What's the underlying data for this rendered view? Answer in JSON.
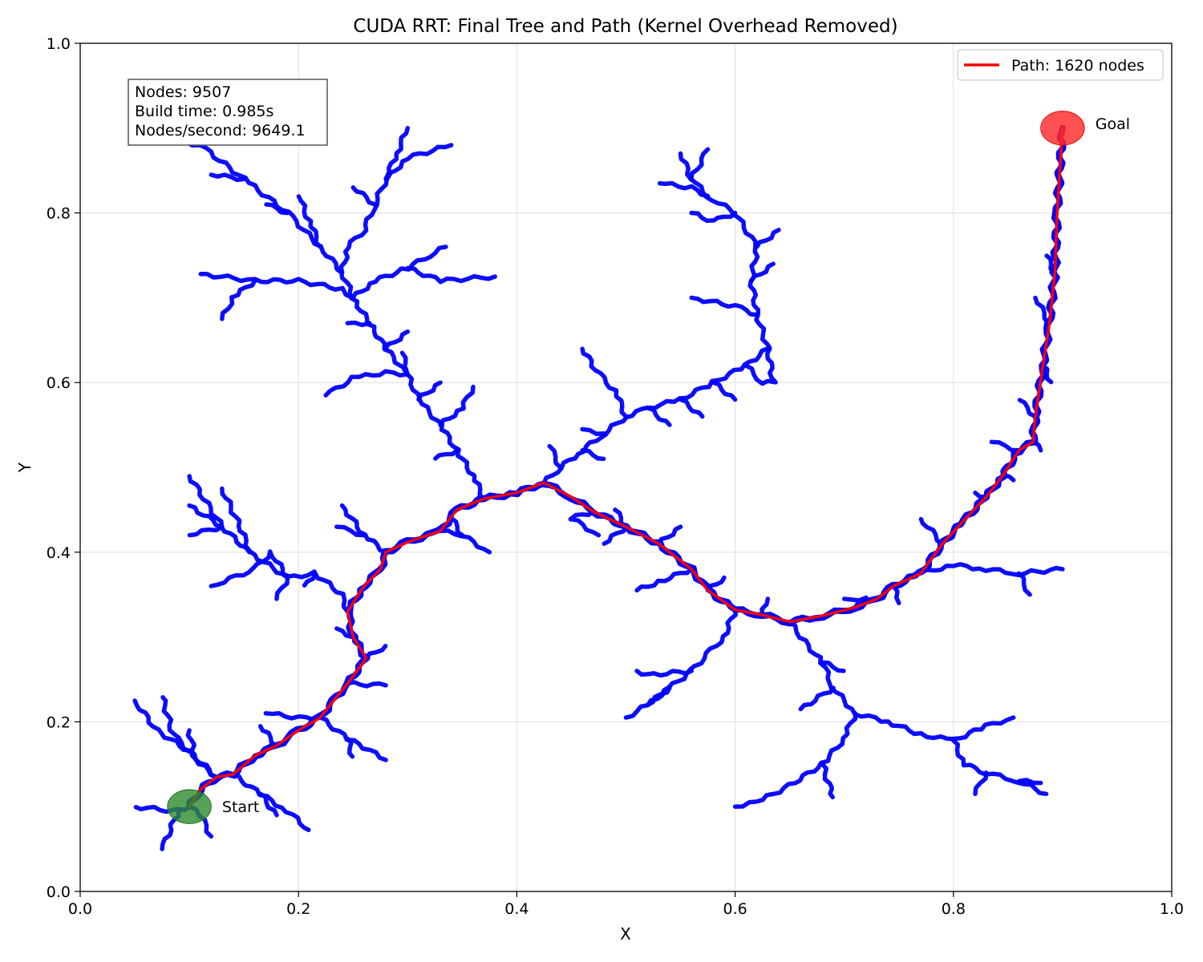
{
  "chart_data": {
    "type": "scatter",
    "title": "CUDA RRT: Final Tree and Path (Kernel Overhead Removed)",
    "xlabel": "X",
    "ylabel": "Y",
    "xlim": [
      0.0,
      1.0
    ],
    "ylim": [
      0.0,
      1.0
    ],
    "x_ticks": [
      "0.0",
      "0.2",
      "0.4",
      "0.6",
      "0.8",
      "1.0"
    ],
    "y_ticks": [
      "0.0",
      "0.2",
      "0.4",
      "0.6",
      "0.8",
      "1.0"
    ],
    "grid": true,
    "legend": {
      "placement": "top-right",
      "entries": [
        {
          "label": "Path: 1620 nodes",
          "color": "#ff0000"
        }
      ]
    },
    "stats": [
      "Nodes: 9507",
      "Build time: 0.985s",
      "Nodes/second: 9649.1"
    ],
    "start": {
      "label": "Start",
      "x": 0.1,
      "y": 0.1,
      "color": "#2e8b2e"
    },
    "goal": {
      "label": "Goal",
      "x": 0.9,
      "y": 0.9,
      "color": "#ff2b2b"
    },
    "tree_color": "#0000ff",
    "path_color": "#ff0000",
    "path": [
      [
        0.1,
        0.1
      ],
      [
        0.11,
        0.12
      ],
      [
        0.125,
        0.135
      ],
      [
        0.14,
        0.138
      ],
      [
        0.16,
        0.16
      ],
      [
        0.18,
        0.172
      ],
      [
        0.2,
        0.19
      ],
      [
        0.22,
        0.205
      ],
      [
        0.232,
        0.225
      ],
      [
        0.245,
        0.245
      ],
      [
        0.262,
        0.275
      ],
      [
        0.25,
        0.3
      ],
      [
        0.245,
        0.33
      ],
      [
        0.26,
        0.36
      ],
      [
        0.275,
        0.38
      ],
      [
        0.28,
        0.4
      ],
      [
        0.3,
        0.412
      ],
      [
        0.33,
        0.425
      ],
      [
        0.345,
        0.45
      ],
      [
        0.37,
        0.463
      ],
      [
        0.4,
        0.47
      ],
      [
        0.425,
        0.482
      ],
      [
        0.45,
        0.465
      ],
      [
        0.47,
        0.448
      ],
      [
        0.5,
        0.43
      ],
      [
        0.53,
        0.41
      ],
      [
        0.56,
        0.38
      ],
      [
        0.575,
        0.355
      ],
      [
        0.6,
        0.332
      ],
      [
        0.625,
        0.326
      ],
      [
        0.65,
        0.318
      ],
      [
        0.68,
        0.325
      ],
      [
        0.71,
        0.335
      ],
      [
        0.73,
        0.345
      ],
      [
        0.745,
        0.36
      ],
      [
        0.77,
        0.375
      ],
      [
        0.79,
        0.41
      ],
      [
        0.81,
        0.438
      ],
      [
        0.83,
        0.465
      ],
      [
        0.845,
        0.49
      ],
      [
        0.86,
        0.52
      ],
      [
        0.873,
        0.53
      ],
      [
        0.875,
        0.56
      ],
      [
        0.882,
        0.62
      ],
      [
        0.888,
        0.67
      ],
      [
        0.893,
        0.73
      ],
      [
        0.895,
        0.8
      ],
      [
        0.9,
        0.9
      ]
    ],
    "tree_branches": [
      [
        [
          0.1,
          0.1
        ],
        [
          0.085,
          0.095
        ],
        [
          0.05,
          0.1
        ]
      ],
      [
        [
          0.09,
          0.095
        ],
        [
          0.075,
          0.05
        ]
      ],
      [
        [
          0.1,
          0.1
        ],
        [
          0.11,
          0.09
        ],
        [
          0.12,
          0.065
        ]
      ],
      [
        [
          0.125,
          0.135
        ],
        [
          0.1,
          0.165
        ],
        [
          0.07,
          0.19
        ],
        [
          0.05,
          0.225
        ]
      ],
      [
        [
          0.1,
          0.165
        ],
        [
          0.085,
          0.185
        ],
        [
          0.075,
          0.23
        ]
      ],
      [
        [
          0.125,
          0.135
        ],
        [
          0.105,
          0.155
        ],
        [
          0.1,
          0.19
        ]
      ],
      [
        [
          0.14,
          0.138
        ],
        [
          0.165,
          0.115
        ],
        [
          0.19,
          0.095
        ],
        [
          0.21,
          0.072
        ]
      ],
      [
        [
          0.165,
          0.115
        ],
        [
          0.18,
          0.09
        ]
      ],
      [
        [
          0.18,
          0.172
        ],
        [
          0.165,
          0.195
        ]
      ],
      [
        [
          0.22,
          0.205
        ],
        [
          0.2,
          0.205
        ],
        [
          0.17,
          0.21
        ]
      ],
      [
        [
          0.22,
          0.205
        ],
        [
          0.245,
          0.18
        ],
        [
          0.26,
          0.17
        ],
        [
          0.28,
          0.155
        ]
      ],
      [
        [
          0.245,
          0.18
        ],
        [
          0.25,
          0.158
        ]
      ],
      [
        [
          0.262,
          0.275
        ],
        [
          0.28,
          0.29
        ]
      ],
      [
        [
          0.245,
          0.245
        ],
        [
          0.28,
          0.243
        ]
      ],
      [
        [
          0.25,
          0.3
        ],
        [
          0.235,
          0.31
        ]
      ],
      [
        [
          0.245,
          0.33
        ],
        [
          0.24,
          0.35
        ],
        [
          0.215,
          0.375
        ],
        [
          0.19,
          0.37
        ],
        [
          0.155,
          0.4
        ],
        [
          0.13,
          0.43
        ],
        [
          0.1,
          0.49
        ]
      ],
      [
        [
          0.13,
          0.43
        ],
        [
          0.1,
          0.455
        ]
      ],
      [
        [
          0.13,
          0.43
        ],
        [
          0.1,
          0.42
        ]
      ],
      [
        [
          0.155,
          0.4
        ],
        [
          0.15,
          0.42
        ],
        [
          0.13,
          0.475
        ]
      ],
      [
        [
          0.19,
          0.37
        ],
        [
          0.175,
          0.4
        ],
        [
          0.16,
          0.38
        ],
        [
          0.12,
          0.36
        ]
      ],
      [
        [
          0.19,
          0.37
        ],
        [
          0.18,
          0.345
        ]
      ],
      [
        [
          0.215,
          0.375
        ],
        [
          0.205,
          0.36
        ]
      ],
      [
        [
          0.28,
          0.4
        ],
        [
          0.26,
          0.42
        ],
        [
          0.24,
          0.455
        ]
      ],
      [
        [
          0.26,
          0.42
        ],
        [
          0.235,
          0.43
        ]
      ],
      [
        [
          0.33,
          0.425
        ],
        [
          0.35,
          0.42
        ],
        [
          0.375,
          0.4
        ]
      ],
      [
        [
          0.35,
          0.42
        ],
        [
          0.34,
          0.44
        ]
      ],
      [
        [
          0.37,
          0.463
        ],
        [
          0.36,
          0.49
        ],
        [
          0.345,
          0.52
        ],
        [
          0.33,
          0.55
        ],
        [
          0.31,
          0.58
        ],
        [
          0.3,
          0.61
        ],
        [
          0.28,
          0.64
        ],
        [
          0.265,
          0.67
        ],
        [
          0.25,
          0.7
        ],
        [
          0.24,
          0.73
        ],
        [
          0.22,
          0.76
        ],
        [
          0.19,
          0.8
        ],
        [
          0.15,
          0.84
        ],
        [
          0.11,
          0.88
        ]
      ],
      [
        [
          0.345,
          0.52
        ],
        [
          0.325,
          0.51
        ]
      ],
      [
        [
          0.33,
          0.55
        ],
        [
          0.35,
          0.57
        ],
        [
          0.36,
          0.595
        ]
      ],
      [
        [
          0.31,
          0.58
        ],
        [
          0.33,
          0.6
        ]
      ],
      [
        [
          0.3,
          0.61
        ],
        [
          0.28,
          0.612
        ],
        [
          0.25,
          0.605
        ],
        [
          0.225,
          0.585
        ]
      ],
      [
        [
          0.3,
          0.61
        ],
        [
          0.295,
          0.635
        ]
      ],
      [
        [
          0.28,
          0.64
        ],
        [
          0.3,
          0.66
        ]
      ],
      [
        [
          0.265,
          0.67
        ],
        [
          0.245,
          0.67
        ]
      ],
      [
        [
          0.25,
          0.7
        ],
        [
          0.27,
          0.72
        ],
        [
          0.3,
          0.735
        ],
        [
          0.32,
          0.75
        ],
        [
          0.335,
          0.76
        ]
      ],
      [
        [
          0.3,
          0.735
        ],
        [
          0.33,
          0.72
        ],
        [
          0.38,
          0.725
        ]
      ],
      [
        [
          0.25,
          0.7
        ],
        [
          0.24,
          0.71
        ],
        [
          0.2,
          0.72
        ],
        [
          0.16,
          0.72
        ],
        [
          0.11,
          0.728
        ]
      ],
      [
        [
          0.16,
          0.72
        ],
        [
          0.14,
          0.7
        ],
        [
          0.13,
          0.675
        ]
      ],
      [
        [
          0.24,
          0.73
        ],
        [
          0.245,
          0.76
        ],
        [
          0.26,
          0.78
        ],
        [
          0.27,
          0.81
        ],
        [
          0.28,
          0.84
        ],
        [
          0.29,
          0.87
        ],
        [
          0.3,
          0.9
        ]
      ],
      [
        [
          0.28,
          0.84
        ],
        [
          0.3,
          0.865
        ],
        [
          0.34,
          0.88
        ]
      ],
      [
        [
          0.27,
          0.81
        ],
        [
          0.25,
          0.83
        ]
      ],
      [
        [
          0.22,
          0.76
        ],
        [
          0.21,
          0.79
        ],
        [
          0.2,
          0.82
        ]
      ],
      [
        [
          0.19,
          0.8
        ],
        [
          0.17,
          0.81
        ]
      ],
      [
        [
          0.15,
          0.84
        ],
        [
          0.12,
          0.845
        ]
      ],
      [
        [
          0.11,
          0.88
        ],
        [
          0.09,
          0.885
        ]
      ],
      [
        [
          0.425,
          0.482
        ],
        [
          0.44,
          0.5
        ],
        [
          0.46,
          0.52
        ],
        [
          0.48,
          0.54
        ],
        [
          0.5,
          0.56
        ],
        [
          0.52,
          0.57
        ],
        [
          0.55,
          0.58
        ],
        [
          0.58,
          0.6
        ],
        [
          0.61,
          0.62
        ],
        [
          0.63,
          0.64
        ]
      ],
      [
        [
          0.44,
          0.5
        ],
        [
          0.43,
          0.525
        ]
      ],
      [
        [
          0.46,
          0.52
        ],
        [
          0.48,
          0.51
        ]
      ],
      [
        [
          0.48,
          0.54
        ],
        [
          0.46,
          0.545
        ]
      ],
      [
        [
          0.5,
          0.56
        ],
        [
          0.49,
          0.59
        ],
        [
          0.475,
          0.61
        ],
        [
          0.46,
          0.64
        ]
      ],
      [
        [
          0.52,
          0.57
        ],
        [
          0.54,
          0.55
        ]
      ],
      [
        [
          0.55,
          0.58
        ],
        [
          0.57,
          0.56
        ]
      ],
      [
        [
          0.58,
          0.6
        ],
        [
          0.6,
          0.58
        ]
      ],
      [
        [
          0.61,
          0.62
        ],
        [
          0.625,
          0.6
        ],
        [
          0.635,
          0.6
        ],
        [
          0.63,
          0.64
        ],
        [
          0.62,
          0.68
        ],
        [
          0.615,
          0.72
        ],
        [
          0.62,
          0.76
        ],
        [
          0.6,
          0.8
        ],
        [
          0.575,
          0.82
        ],
        [
          0.56,
          0.84
        ],
        [
          0.55,
          0.87
        ]
      ],
      [
        [
          0.62,
          0.68
        ],
        [
          0.6,
          0.69
        ],
        [
          0.56,
          0.7
        ]
      ],
      [
        [
          0.615,
          0.72
        ],
        [
          0.635,
          0.74
        ]
      ],
      [
        [
          0.62,
          0.76
        ],
        [
          0.64,
          0.78
        ]
      ],
      [
        [
          0.6,
          0.8
        ],
        [
          0.58,
          0.79
        ],
        [
          0.56,
          0.8
        ]
      ],
      [
        [
          0.575,
          0.82
        ],
        [
          0.56,
          0.83
        ],
        [
          0.53,
          0.835
        ]
      ],
      [
        [
          0.56,
          0.84
        ],
        [
          0.575,
          0.875
        ]
      ],
      [
        [
          0.47,
          0.448
        ],
        [
          0.45,
          0.44
        ],
        [
          0.475,
          0.42
        ]
      ],
      [
        [
          0.5,
          0.43
        ],
        [
          0.49,
          0.45
        ]
      ],
      [
        [
          0.5,
          0.43
        ],
        [
          0.48,
          0.41
        ]
      ],
      [
        [
          0.53,
          0.41
        ],
        [
          0.55,
          0.43
        ]
      ],
      [
        [
          0.56,
          0.38
        ],
        [
          0.53,
          0.365
        ],
        [
          0.51,
          0.355
        ]
      ],
      [
        [
          0.575,
          0.355
        ],
        [
          0.59,
          0.37
        ]
      ],
      [
        [
          0.6,
          0.332
        ],
        [
          0.59,
          0.3
        ],
        [
          0.575,
          0.28
        ],
        [
          0.56,
          0.26
        ],
        [
          0.54,
          0.24
        ],
        [
          0.52,
          0.22
        ],
        [
          0.5,
          0.205
        ]
      ],
      [
        [
          0.56,
          0.26
        ],
        [
          0.52,
          0.255
        ],
        [
          0.51,
          0.26
        ]
      ],
      [
        [
          0.54,
          0.24
        ],
        [
          0.52,
          0.22
        ]
      ],
      [
        [
          0.625,
          0.326
        ],
        [
          0.63,
          0.345
        ]
      ],
      [
        [
          0.65,
          0.318
        ],
        [
          0.66,
          0.3
        ],
        [
          0.68,
          0.27
        ],
        [
          0.69,
          0.24
        ],
        [
          0.71,
          0.21
        ],
        [
          0.74,
          0.2
        ],
        [
          0.77,
          0.185
        ],
        [
          0.8,
          0.178
        ],
        [
          0.83,
          0.195
        ],
        [
          0.855,
          0.205
        ]
      ],
      [
        [
          0.68,
          0.27
        ],
        [
          0.7,
          0.26
        ]
      ],
      [
        [
          0.69,
          0.24
        ],
        [
          0.66,
          0.215
        ]
      ],
      [
        [
          0.71,
          0.21
        ],
        [
          0.7,
          0.18
        ],
        [
          0.68,
          0.15
        ],
        [
          0.65,
          0.125
        ],
        [
          0.62,
          0.105
        ],
        [
          0.6,
          0.1
        ]
      ],
      [
        [
          0.68,
          0.15
        ],
        [
          0.69,
          0.11
        ]
      ],
      [
        [
          0.8,
          0.178
        ],
        [
          0.81,
          0.15
        ],
        [
          0.83,
          0.14
        ],
        [
          0.86,
          0.13
        ],
        [
          0.885,
          0.115
        ]
      ],
      [
        [
          0.83,
          0.14
        ],
        [
          0.82,
          0.115
        ]
      ],
      [
        [
          0.86,
          0.13
        ],
        [
          0.88,
          0.128
        ]
      ],
      [
        [
          0.71,
          0.335
        ],
        [
          0.72,
          0.345
        ],
        [
          0.7,
          0.345
        ]
      ],
      [
        [
          0.745,
          0.36
        ],
        [
          0.75,
          0.34
        ]
      ],
      [
        [
          0.79,
          0.41
        ],
        [
          0.77,
          0.44
        ]
      ],
      [
        [
          0.77,
          0.375
        ],
        [
          0.8,
          0.385
        ],
        [
          0.83,
          0.38
        ],
        [
          0.86,
          0.375
        ],
        [
          0.9,
          0.38
        ]
      ],
      [
        [
          0.86,
          0.375
        ],
        [
          0.87,
          0.35
        ]
      ],
      [
        [
          0.83,
          0.465
        ],
        [
          0.82,
          0.47
        ]
      ],
      [
        [
          0.845,
          0.49
        ],
        [
          0.855,
          0.485
        ]
      ],
      [
        [
          0.86,
          0.52
        ],
        [
          0.835,
          0.53
        ]
      ],
      [
        [
          0.873,
          0.53
        ],
        [
          0.88,
          0.52
        ]
      ],
      [
        [
          0.875,
          0.56
        ],
        [
          0.86,
          0.58
        ]
      ],
      [
        [
          0.882,
          0.62
        ],
        [
          0.89,
          0.6
        ]
      ],
      [
        [
          0.888,
          0.67
        ],
        [
          0.875,
          0.7
        ]
      ],
      [
        [
          0.893,
          0.73
        ],
        [
          0.885,
          0.75
        ]
      ]
    ]
  }
}
